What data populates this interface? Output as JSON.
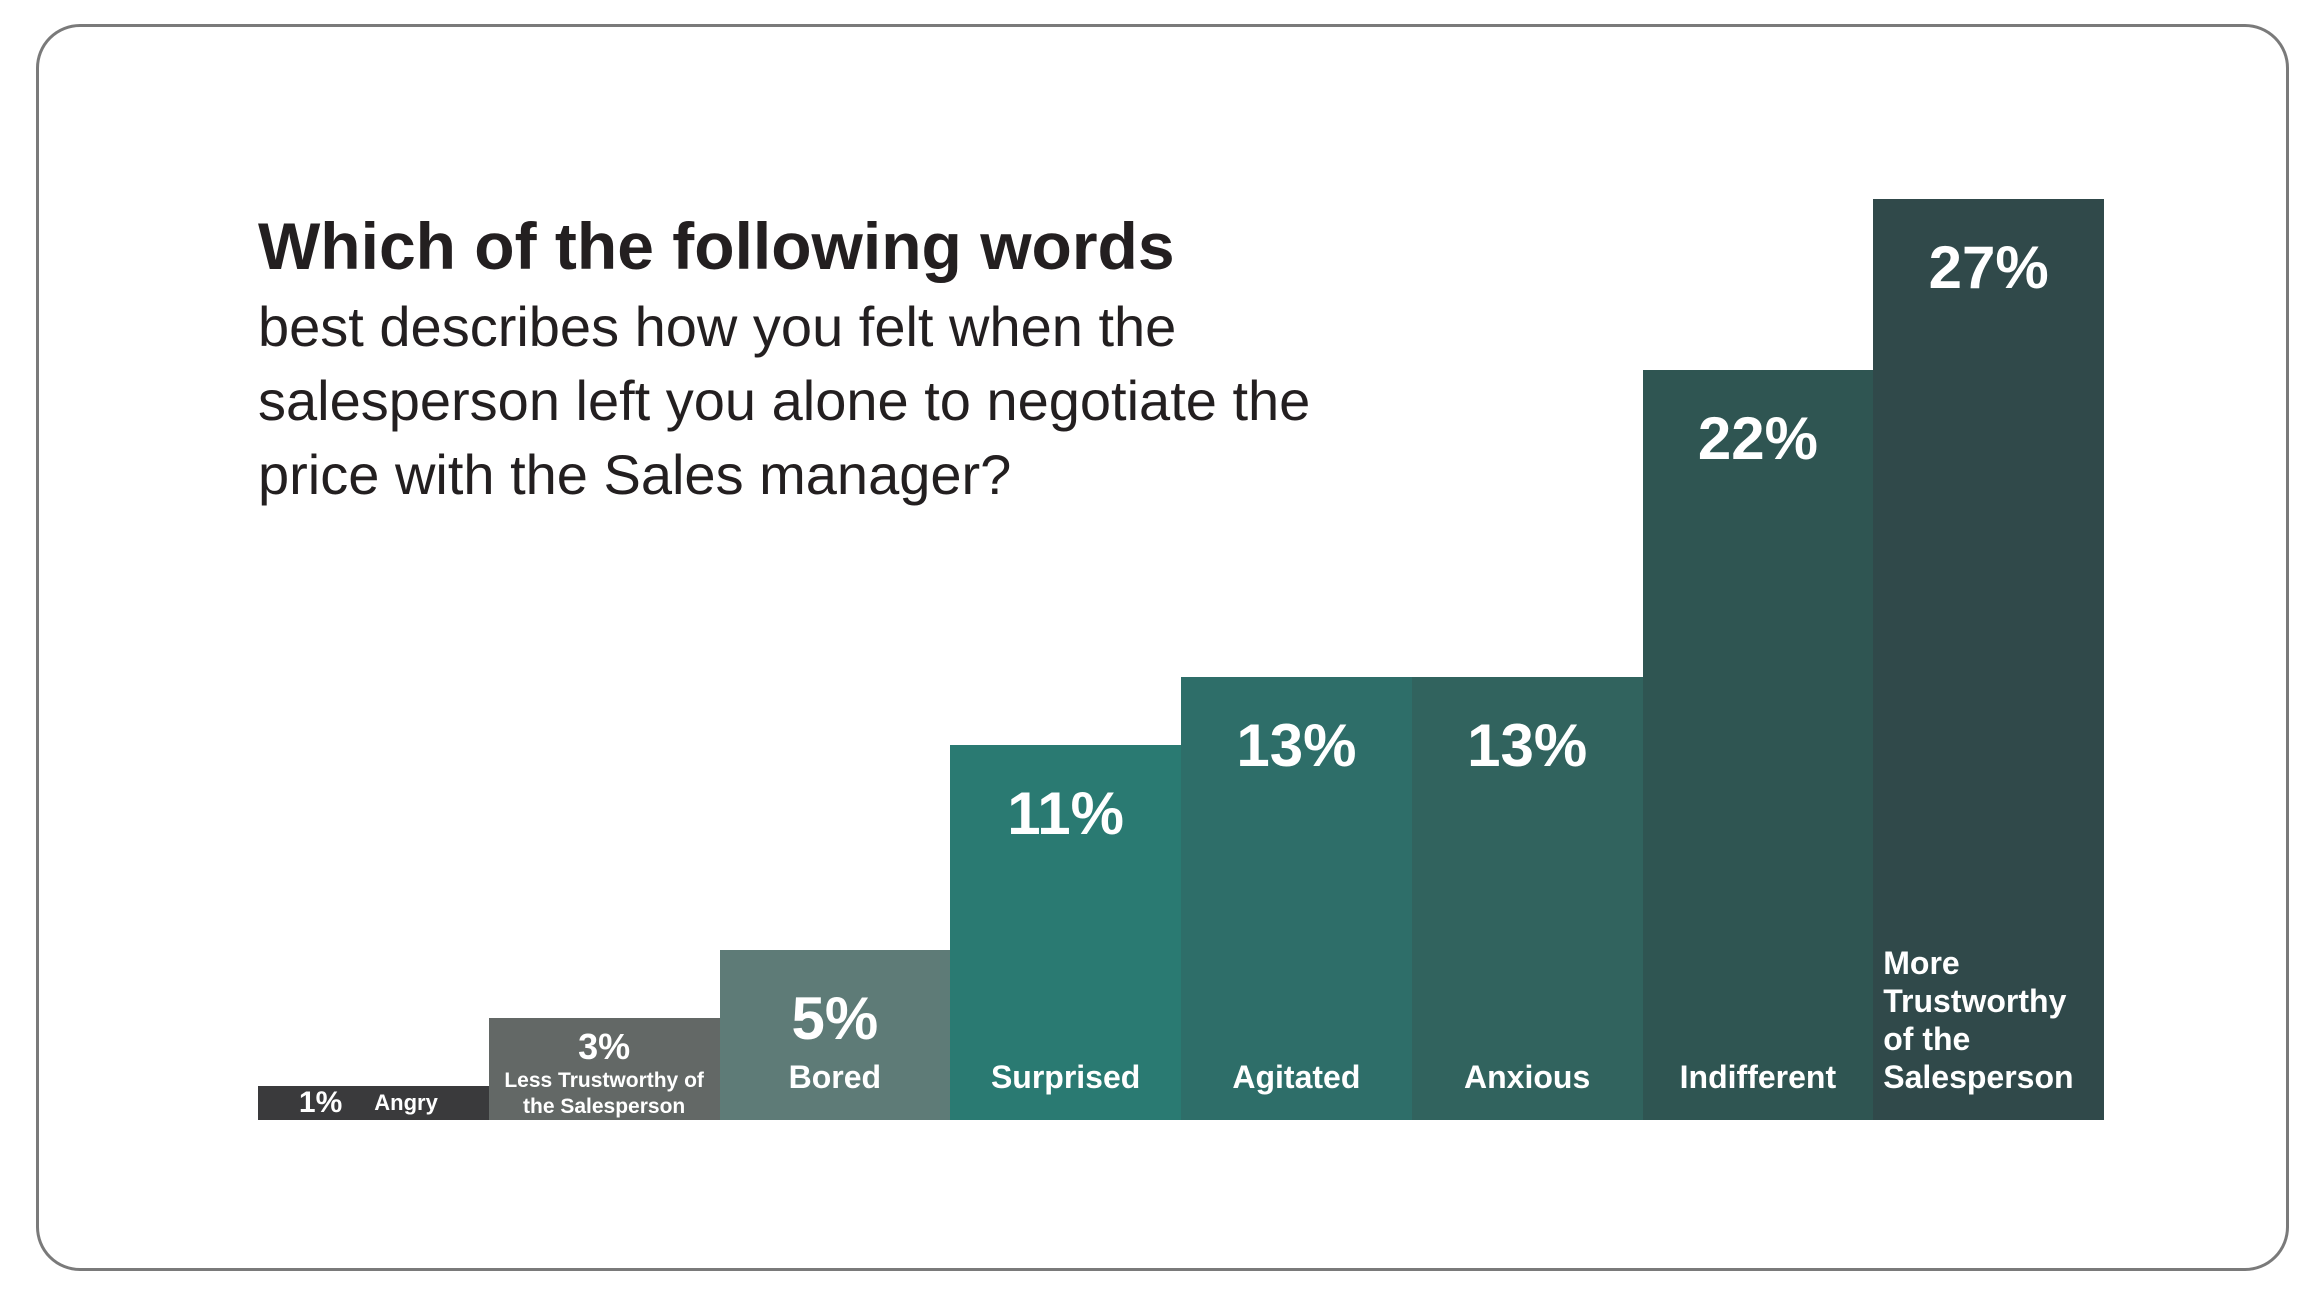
{
  "chart_data": {
    "type": "bar",
    "title": "Which of the following words",
    "subtitle": "best describes how you felt when the salesperson left you alone to negotiate the price with the Sales manager?",
    "categories": [
      "Angry",
      "Less Trustworthy of the Salesperson",
      "Bored",
      "Surprised",
      "Agitated",
      "Anxious",
      "Indifferent",
      "More Trustworthy of the Salesperson"
    ],
    "values": [
      1,
      3,
      5,
      11,
      13,
      13,
      22,
      27
    ],
    "value_labels": [
      "1%",
      "3%",
      "5%",
      "11%",
      "13%",
      "13%",
      "22%",
      "27%"
    ],
    "colors": [
      "#3a3a3c",
      "#636866",
      "#5e7b77",
      "#2a7a72",
      "#2e6e69",
      "#31635e",
      "#2f5552",
      "#30494a"
    ]
  }
}
